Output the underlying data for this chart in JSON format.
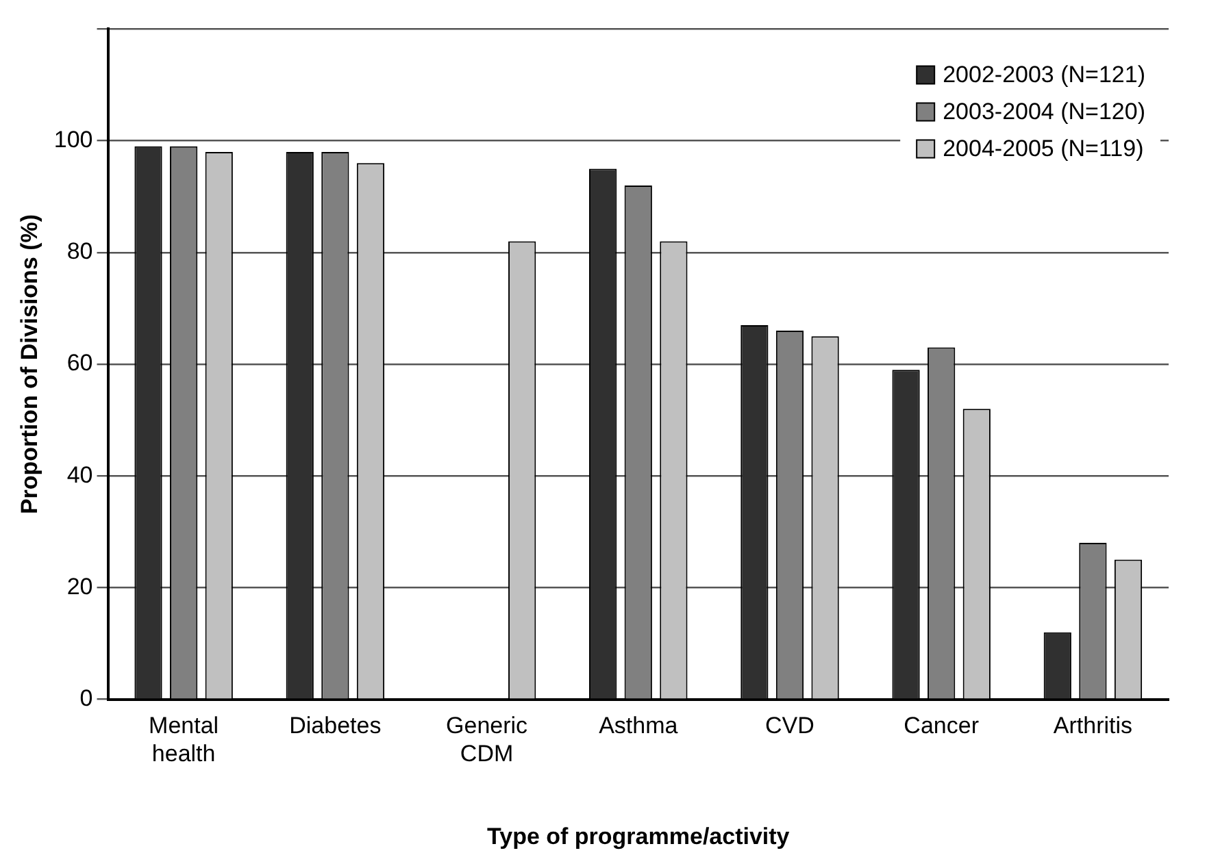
{
  "chart_data": {
    "type": "bar",
    "xlabel": "Type of programme/activity",
    "ylabel": "Proportion of Divisions (%)",
    "categories": [
      "Mental health",
      "Diabetes",
      "Generic CDM",
      "Asthma",
      "CVD",
      "Cancer",
      "Arthritis"
    ],
    "series": [
      {
        "name": "2002-2003 (N=121)",
        "color": "#303030",
        "values": [
          99,
          98,
          null,
          95,
          67,
          59,
          12
        ]
      },
      {
        "name": "2003-2004 (N=120)",
        "color": "#808080",
        "values": [
          99,
          98,
          null,
          92,
          66,
          63,
          28
        ]
      },
      {
        "name": "2004-2005 (N=119)",
        "color": "#c0c0c0",
        "values": [
          98,
          96,
          82,
          82,
          65,
          52,
          25
        ]
      }
    ],
    "ylim": [
      0,
      120
    ],
    "yticks": [
      0,
      20,
      40,
      60,
      80,
      100,
      {
        "value": 120,
        "label": null
      }
    ],
    "grid": "y",
    "legend": "top right"
  }
}
